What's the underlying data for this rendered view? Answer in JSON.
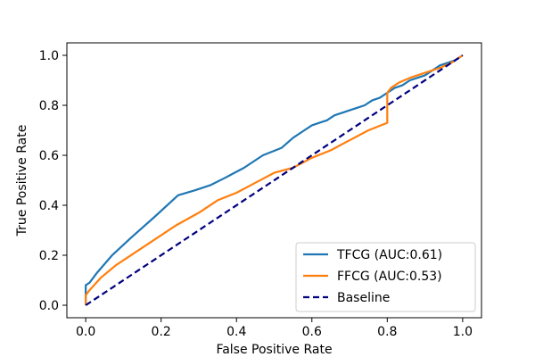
{
  "chart_data": {
    "type": "line",
    "xlabel": "False Positive Rate",
    "ylabel": "True Positive Rate",
    "xlim": [
      -0.05,
      1.05
    ],
    "ylim": [
      -0.05,
      1.05
    ],
    "x_ticks": [
      0.0,
      0.2,
      0.4,
      0.6,
      0.8,
      1.0
    ],
    "y_ticks": [
      0.0,
      0.2,
      0.4,
      0.6,
      0.8,
      1.0
    ],
    "x_tick_labels": [
      "0.0",
      "0.2",
      "0.4",
      "0.6",
      "0.8",
      "1.0"
    ],
    "y_tick_labels": [
      "0.0",
      "0.2",
      "0.4",
      "0.6",
      "0.8",
      "1.0"
    ],
    "grid": false,
    "legend_position": "bottom-right",
    "series": [
      {
        "name": "TFCG (AUC:0.61)",
        "color": "#1f77b4",
        "style": "solid",
        "x": [
          0.0,
          0.0,
          0.01,
          0.03,
          0.07,
          0.12,
          0.18,
          0.245,
          0.29,
          0.33,
          0.37,
          0.42,
          0.47,
          0.52,
          0.55,
          0.58,
          0.6,
          0.62,
          0.64,
          0.66,
          0.68,
          0.7,
          0.72,
          0.74,
          0.76,
          0.78,
          0.8,
          0.81,
          0.82,
          0.84,
          0.86,
          0.88,
          0.9,
          0.92,
          0.94,
          0.96,
          0.98,
          1.0
        ],
        "y": [
          0.0,
          0.08,
          0.09,
          0.13,
          0.2,
          0.27,
          0.35,
          0.44,
          0.46,
          0.48,
          0.51,
          0.55,
          0.6,
          0.63,
          0.67,
          0.7,
          0.72,
          0.73,
          0.74,
          0.76,
          0.77,
          0.78,
          0.79,
          0.8,
          0.82,
          0.83,
          0.85,
          0.86,
          0.87,
          0.88,
          0.9,
          0.91,
          0.92,
          0.94,
          0.96,
          0.97,
          0.98,
          1.0
        ]
      },
      {
        "name": "FFCG (AUC:0.53)",
        "color": "#ff7f0e",
        "style": "solid",
        "x": [
          0.0,
          0.0,
          0.01,
          0.04,
          0.08,
          0.13,
          0.18,
          0.24,
          0.3,
          0.35,
          0.4,
          0.45,
          0.5,
          0.55,
          0.6,
          0.65,
          0.7,
          0.75,
          0.8,
          0.8,
          0.81,
          0.83,
          0.86,
          0.9,
          0.94,
          0.97,
          1.0
        ],
        "y": [
          0.0,
          0.04,
          0.06,
          0.11,
          0.16,
          0.21,
          0.26,
          0.32,
          0.37,
          0.42,
          0.45,
          0.49,
          0.53,
          0.55,
          0.59,
          0.62,
          0.66,
          0.7,
          0.73,
          0.85,
          0.87,
          0.89,
          0.91,
          0.93,
          0.95,
          0.97,
          1.0
        ]
      },
      {
        "name": "Baseline",
        "color": "#000080",
        "style": "dashed",
        "x": [
          0.0,
          1.0
        ],
        "y": [
          0.0,
          1.0
        ]
      }
    ]
  }
}
